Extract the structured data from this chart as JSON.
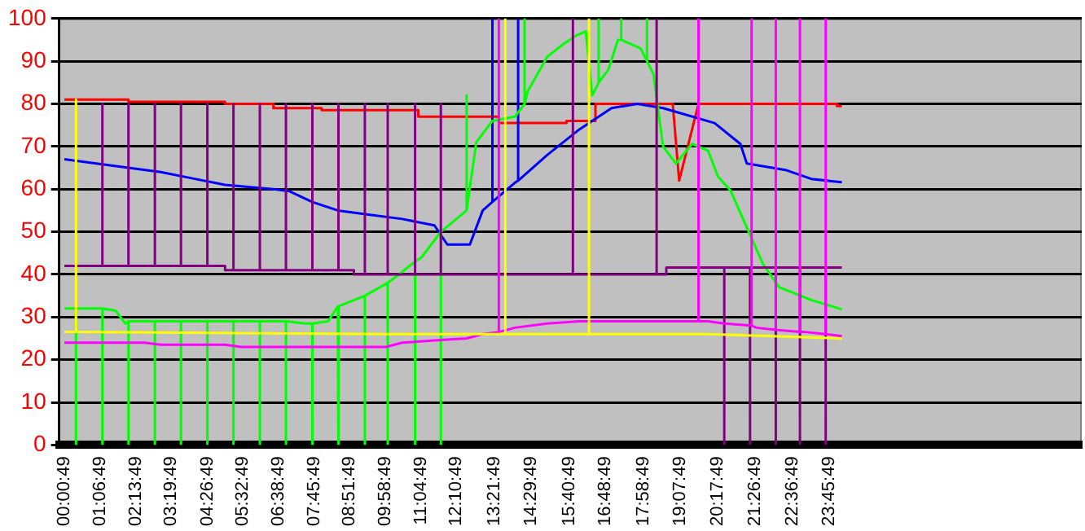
{
  "chart_data": {
    "type": "line",
    "marker": "none",
    "grid": "y",
    "legend": false,
    "xlim": [
      -0.15,
      31.6
    ],
    "xticks": [
      {
        "value": 0.0136,
        "label": "00:00:49"
      },
      {
        "value": 1.1136,
        "label": "01:06:49"
      },
      {
        "value": 2.2303,
        "label": "02:13:49"
      },
      {
        "value": 3.3303,
        "label": "03:19:49"
      },
      {
        "value": 4.4469,
        "label": "04:26:49"
      },
      {
        "value": 5.5469,
        "label": "05:32:49"
      },
      {
        "value": 6.6469,
        "label": "06:38:49"
      },
      {
        "value": 7.7636,
        "label": "07:45:49"
      },
      {
        "value": 8.8636,
        "label": "08:51:49"
      },
      {
        "value": 9.9803,
        "label": "09:58:49"
      },
      {
        "value": 11.0803,
        "label": "11:04:49"
      },
      {
        "value": 12.1803,
        "label": "12:10:49"
      },
      {
        "value": 13.3636,
        "label": "13:21:49"
      },
      {
        "value": 14.4969,
        "label": "14:29:49"
      },
      {
        "value": 15.6803,
        "label": "15:40:49"
      },
      {
        "value": 16.8136,
        "label": "16:48:49"
      },
      {
        "value": 17.9803,
        "label": "17:58:49"
      },
      {
        "value": 19.1303,
        "label": "19:07:49"
      },
      {
        "value": 20.2969,
        "label": "20:17:49"
      },
      {
        "value": 21.4469,
        "label": "21:26:49"
      },
      {
        "value": 22.6136,
        "label": "22:36:49"
      },
      {
        "value": 23.7636,
        "label": "23:45:49"
      }
    ],
    "ylim": [
      0,
      100
    ],
    "yticks": [
      0,
      10,
      20,
      30,
      40,
      50,
      60,
      70,
      80,
      90,
      100
    ],
    "series": [
      {
        "color": "#ffff00",
        "x": [
          0.01,
          0.37,
          0.37,
          0.37,
          10,
          13.7,
          13.7,
          13.7,
          16,
          16.3,
          16.3,
          16.3,
          20,
          24.15
        ],
        "values": [
          26.5,
          26.5,
          81,
          26.5,
          26,
          26,
          100,
          26,
          26,
          26,
          100,
          26,
          26,
          25
        ]
      },
      {
        "color": "#ff00ff",
        "x": [
          0.01,
          2.5,
          3,
          5,
          5.5,
          10,
          10.5,
          11.5,
          12.5,
          13,
          13.5,
          13.5,
          13.5,
          14,
          15,
          16,
          19.7,
          19.7,
          19.7,
          20,
          20.5,
          21.35,
          21.35,
          21.35,
          21.5,
          22.1,
          22.1,
          22.1,
          22.85,
          22.85,
          22.85,
          23,
          23.65,
          23.65,
          23.65,
          24.15
        ],
        "values": [
          24,
          24,
          23.5,
          23.5,
          23,
          23,
          24,
          24.5,
          25,
          26,
          26.5,
          100,
          26.5,
          27.5,
          28.5,
          29,
          29,
          100,
          29,
          29,
          28.5,
          28,
          100,
          28,
          27.5,
          27,
          100,
          27,
          26.5,
          100,
          26.5,
          26.5,
          26,
          100,
          26,
          25.5
        ]
      },
      {
        "color": "#800080",
        "x": [
          0.01,
          1.19,
          1.19,
          1.19,
          2.0,
          2.0,
          2.0,
          2.82,
          2.82,
          2.82,
          3.63,
          3.63,
          3.63,
          4.45,
          4.45,
          4.45,
          5.0,
          5.0,
          5.26,
          5.26,
          5.26,
          6.08,
          6.08,
          6.08,
          6.89,
          6.89,
          6.89,
          7.71,
          7.71,
          7.71,
          8.52,
          8.52,
          8.52,
          9.0,
          9.0,
          9.34,
          9.34,
          9.34,
          10.05,
          10.05,
          10.05,
          10.9,
          10.9,
          10.9,
          11.7,
          11.7,
          11.7,
          15.8,
          15.8,
          15.8,
          18.4,
          18.4,
          18.4,
          18.7,
          18.7,
          20.5,
          20.5,
          20.5,
          21.3,
          21.3,
          21.3,
          22.1,
          22.1,
          22.1,
          22.85,
          22.85,
          22.85,
          23.65,
          23.65,
          23.65,
          24.15
        ],
        "values": [
          42,
          42,
          80,
          42,
          42,
          80,
          42,
          42,
          80,
          42,
          42,
          80,
          42,
          42,
          80,
          42,
          42,
          41,
          41,
          80,
          41,
          41,
          80,
          41,
          41,
          80,
          41,
          41,
          80,
          41,
          41,
          80,
          41,
          41,
          40,
          40,
          80,
          40,
          40,
          80,
          40,
          40,
          80,
          40,
          40,
          80,
          40,
          40,
          100,
          40,
          40,
          100,
          40,
          40,
          41.6,
          41.6,
          0,
          41.6,
          41.6,
          0,
          41.6,
          41.6,
          0,
          41.6,
          41.6,
          0,
          41.6,
          41.6,
          0,
          41.6,
          41.6
        ]
      },
      {
        "color": "#00ff00",
        "x": [
          0.01,
          0.37,
          0.37,
          0.37,
          1.19,
          1.19,
          1.19,
          1.6,
          1.9,
          2.0,
          2.0,
          2.0,
          2.82,
          2.82,
          2.82,
          3.63,
          3.63,
          3.63,
          4.45,
          4.45,
          4.45,
          5.26,
          5.26,
          5.26,
          6.08,
          6.08,
          6.08,
          6.89,
          6.89,
          6.89,
          7.5,
          7.71,
          7.71,
          7.71,
          8.2,
          8.5,
          8.52,
          8.52,
          8.52,
          9.34,
          9.34,
          9.34,
          10.05,
          10.05,
          10.05,
          10.4,
          10.9,
          10.9,
          10.9,
          11.1,
          11.7,
          11.7,
          11.7,
          11.8,
          12.5,
          12.5,
          12.5,
          12.8,
          13.3,
          14,
          14.3,
          14.3,
          14.3,
          14.4,
          15,
          15.5,
          15.9,
          16.2,
          16.4,
          16.6,
          16.6,
          16.6,
          16.9,
          17.2,
          17.3,
          17.3,
          17.3,
          17.9,
          18.1,
          18.1,
          18.1,
          18.3,
          18.6,
          19,
          19.5,
          20,
          20.3,
          20.7,
          21.2,
          21.7,
          22.2,
          23.2,
          24.15
        ],
        "values": [
          32,
          32,
          0,
          32,
          32,
          0,
          32,
          31.5,
          28.5,
          29,
          0,
          29,
          29,
          0,
          29,
          29,
          0,
          29,
          29,
          0,
          29,
          29,
          0,
          29,
          29,
          0,
          29,
          29,
          0,
          29,
          28.5,
          28.5,
          0,
          28.5,
          29,
          32.5,
          32.5,
          0,
          32.5,
          35,
          0,
          35,
          38,
          0,
          38,
          40,
          43,
          0,
          43,
          44,
          50,
          0,
          50,
          50.6,
          55,
          82,
          55,
          71,
          76,
          77,
          80,
          100,
          80,
          83,
          91,
          94,
          96,
          97,
          82,
          85,
          100,
          85,
          88,
          95,
          95,
          100,
          95,
          93,
          90,
          100,
          90,
          87,
          70,
          66,
          70.6,
          69,
          63,
          59.6,
          51,
          42.5,
          37,
          34,
          31.8
        ]
      },
      {
        "color": "#0000ff",
        "x": [
          0.01,
          1,
          2,
          3,
          4,
          5,
          6.5,
          7,
          7.7,
          8.5,
          9.5,
          10.5,
          11.5,
          11.9,
          12.6,
          13,
          13.3,
          13.3,
          13.3,
          14,
          14.1,
          14.1,
          14.1,
          15,
          16,
          17,
          17.8,
          18.6,
          20.2,
          21,
          21.2,
          22.4,
          23.2,
          24.15
        ],
        "values": [
          67,
          66,
          65,
          64,
          62.5,
          61,
          60,
          59.5,
          57,
          55,
          54,
          53,
          51.5,
          47,
          47,
          55,
          57,
          100,
          57,
          61.5,
          62,
          100,
          62,
          68,
          74,
          79,
          80,
          79,
          75.5,
          70.6,
          66,
          64.5,
          62.4,
          61.6
        ]
      },
      {
        "color": "#ff0000",
        "x": [
          0.01,
          2.0,
          2.0,
          5.0,
          5.0,
          6.5,
          6.5,
          8.0,
          8.0,
          11.0,
          11.0,
          13.5,
          13.5,
          15.6,
          15.6,
          16.5,
          16.5,
          18.9,
          19.1,
          19.7,
          24.0,
          24.0,
          24.15
        ],
        "values": [
          81,
          81,
          80.5,
          80.5,
          80,
          80,
          79,
          79,
          78.5,
          78.5,
          77,
          77,
          75.5,
          75.5,
          76,
          76,
          80,
          80,
          62,
          80,
          80,
          79.5,
          79.5
        ]
      }
    ]
  }
}
